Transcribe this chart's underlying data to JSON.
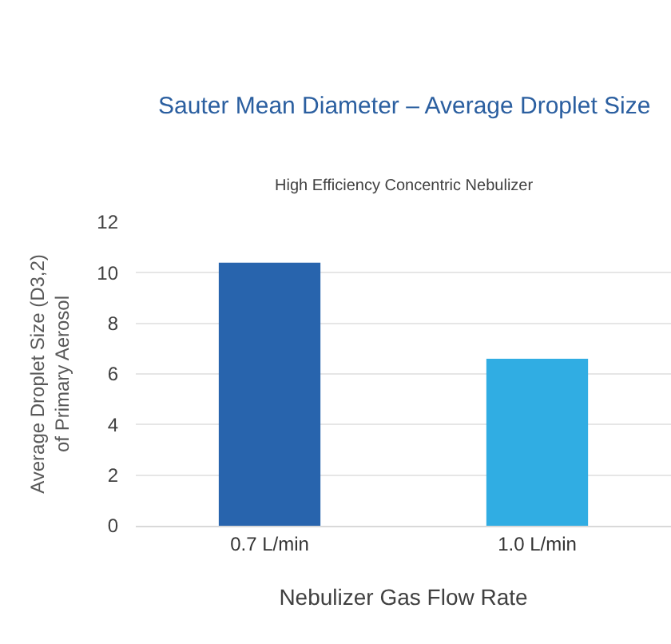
{
  "chart_data": {
    "type": "bar",
    "title": "Sauter Mean Diameter – Average Droplet Size",
    "subtitle": "High Efficiency Concentric Nebulizer",
    "xlabel": "Nebulizer Gas Flow Rate",
    "ylabel": "Average Droplet Size (D3,2)\nof Primary Aerosol",
    "categories": [
      "0.7 L/min",
      "1.0 L/min"
    ],
    "values": [
      10.4,
      6.6
    ],
    "colors": [
      "#2864ad",
      "#30ade3"
    ],
    "ylim": [
      0,
      12
    ],
    "yticks": [
      0,
      2,
      4,
      6,
      8,
      10,
      12
    ],
    "grid": "y"
  }
}
